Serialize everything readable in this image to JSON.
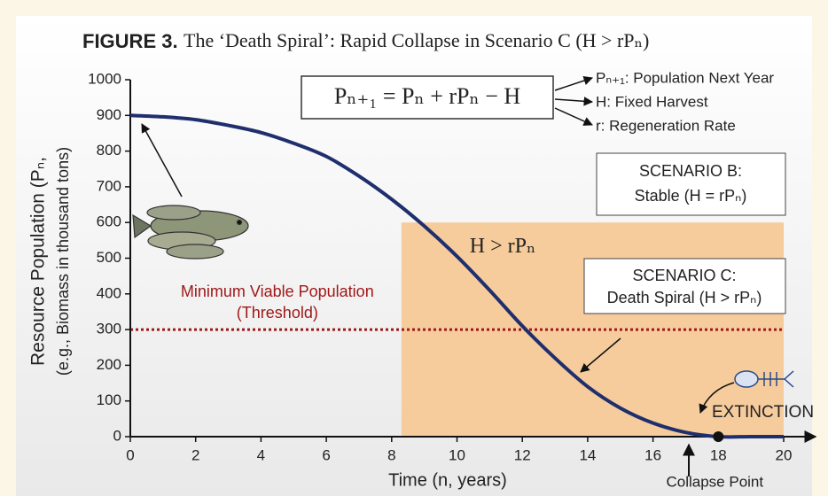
{
  "chart_data": {
    "type": "line",
    "title_prefix": "FIGURE 3.",
    "title": "The ‘Death Spiral’: Rapid Collapse in Scenario C (H > rPₙ)",
    "xlabel": "Time (n, years)",
    "ylabel": "Resource Population (Pₙ,",
    "ylabel_sub": "(e.g., Biomass in thousand tons)",
    "x": [
      0,
      1,
      2,
      3,
      4,
      5,
      6,
      7,
      8,
      9,
      10,
      11,
      12,
      13,
      14,
      15,
      16,
      17,
      18,
      19,
      20
    ],
    "values": [
      900,
      896,
      888,
      872,
      852,
      822,
      785,
      730,
      665,
      590,
      505,
      410,
      310,
      220,
      140,
      80,
      38,
      12,
      0,
      0,
      0
    ],
    "color": "#1f2f6e",
    "xlim": [
      0,
      20
    ],
    "ylim": [
      0,
      1000
    ],
    "xticks": [
      0,
      2,
      4,
      6,
      8,
      10,
      12,
      14,
      16,
      18,
      20
    ],
    "yticks": [
      0,
      100,
      200,
      300,
      400,
      500,
      600,
      700,
      800,
      900,
      1000
    ],
    "threshold": {
      "value": 300,
      "color": "#a01818",
      "label": [
        "Minimum Viable Population",
        "(Threshold)"
      ]
    },
    "region": {
      "x": [
        8.3,
        20
      ],
      "y": [
        0,
        600
      ],
      "color": "#f6cc9c",
      "label": "H > rPₙ"
    },
    "collapse_point": {
      "x": 18,
      "y": 0,
      "label": "Collapse Point"
    },
    "extinction_label": "EXTINCTION",
    "equation": "Pₙ₊₁ = Pₙ + rPₙ − H",
    "equation_terms": [
      "Pₙ₊₁: Population Next Year",
      "H: Fixed Harvest",
      "r: Regeneration Rate"
    ],
    "scenario_b": [
      "SCENARIO B:",
      "Stable (H = rPₙ)"
    ],
    "scenario_c": [
      "SCENARIO C:",
      "Death Spiral (H > rPₙ)"
    ]
  }
}
